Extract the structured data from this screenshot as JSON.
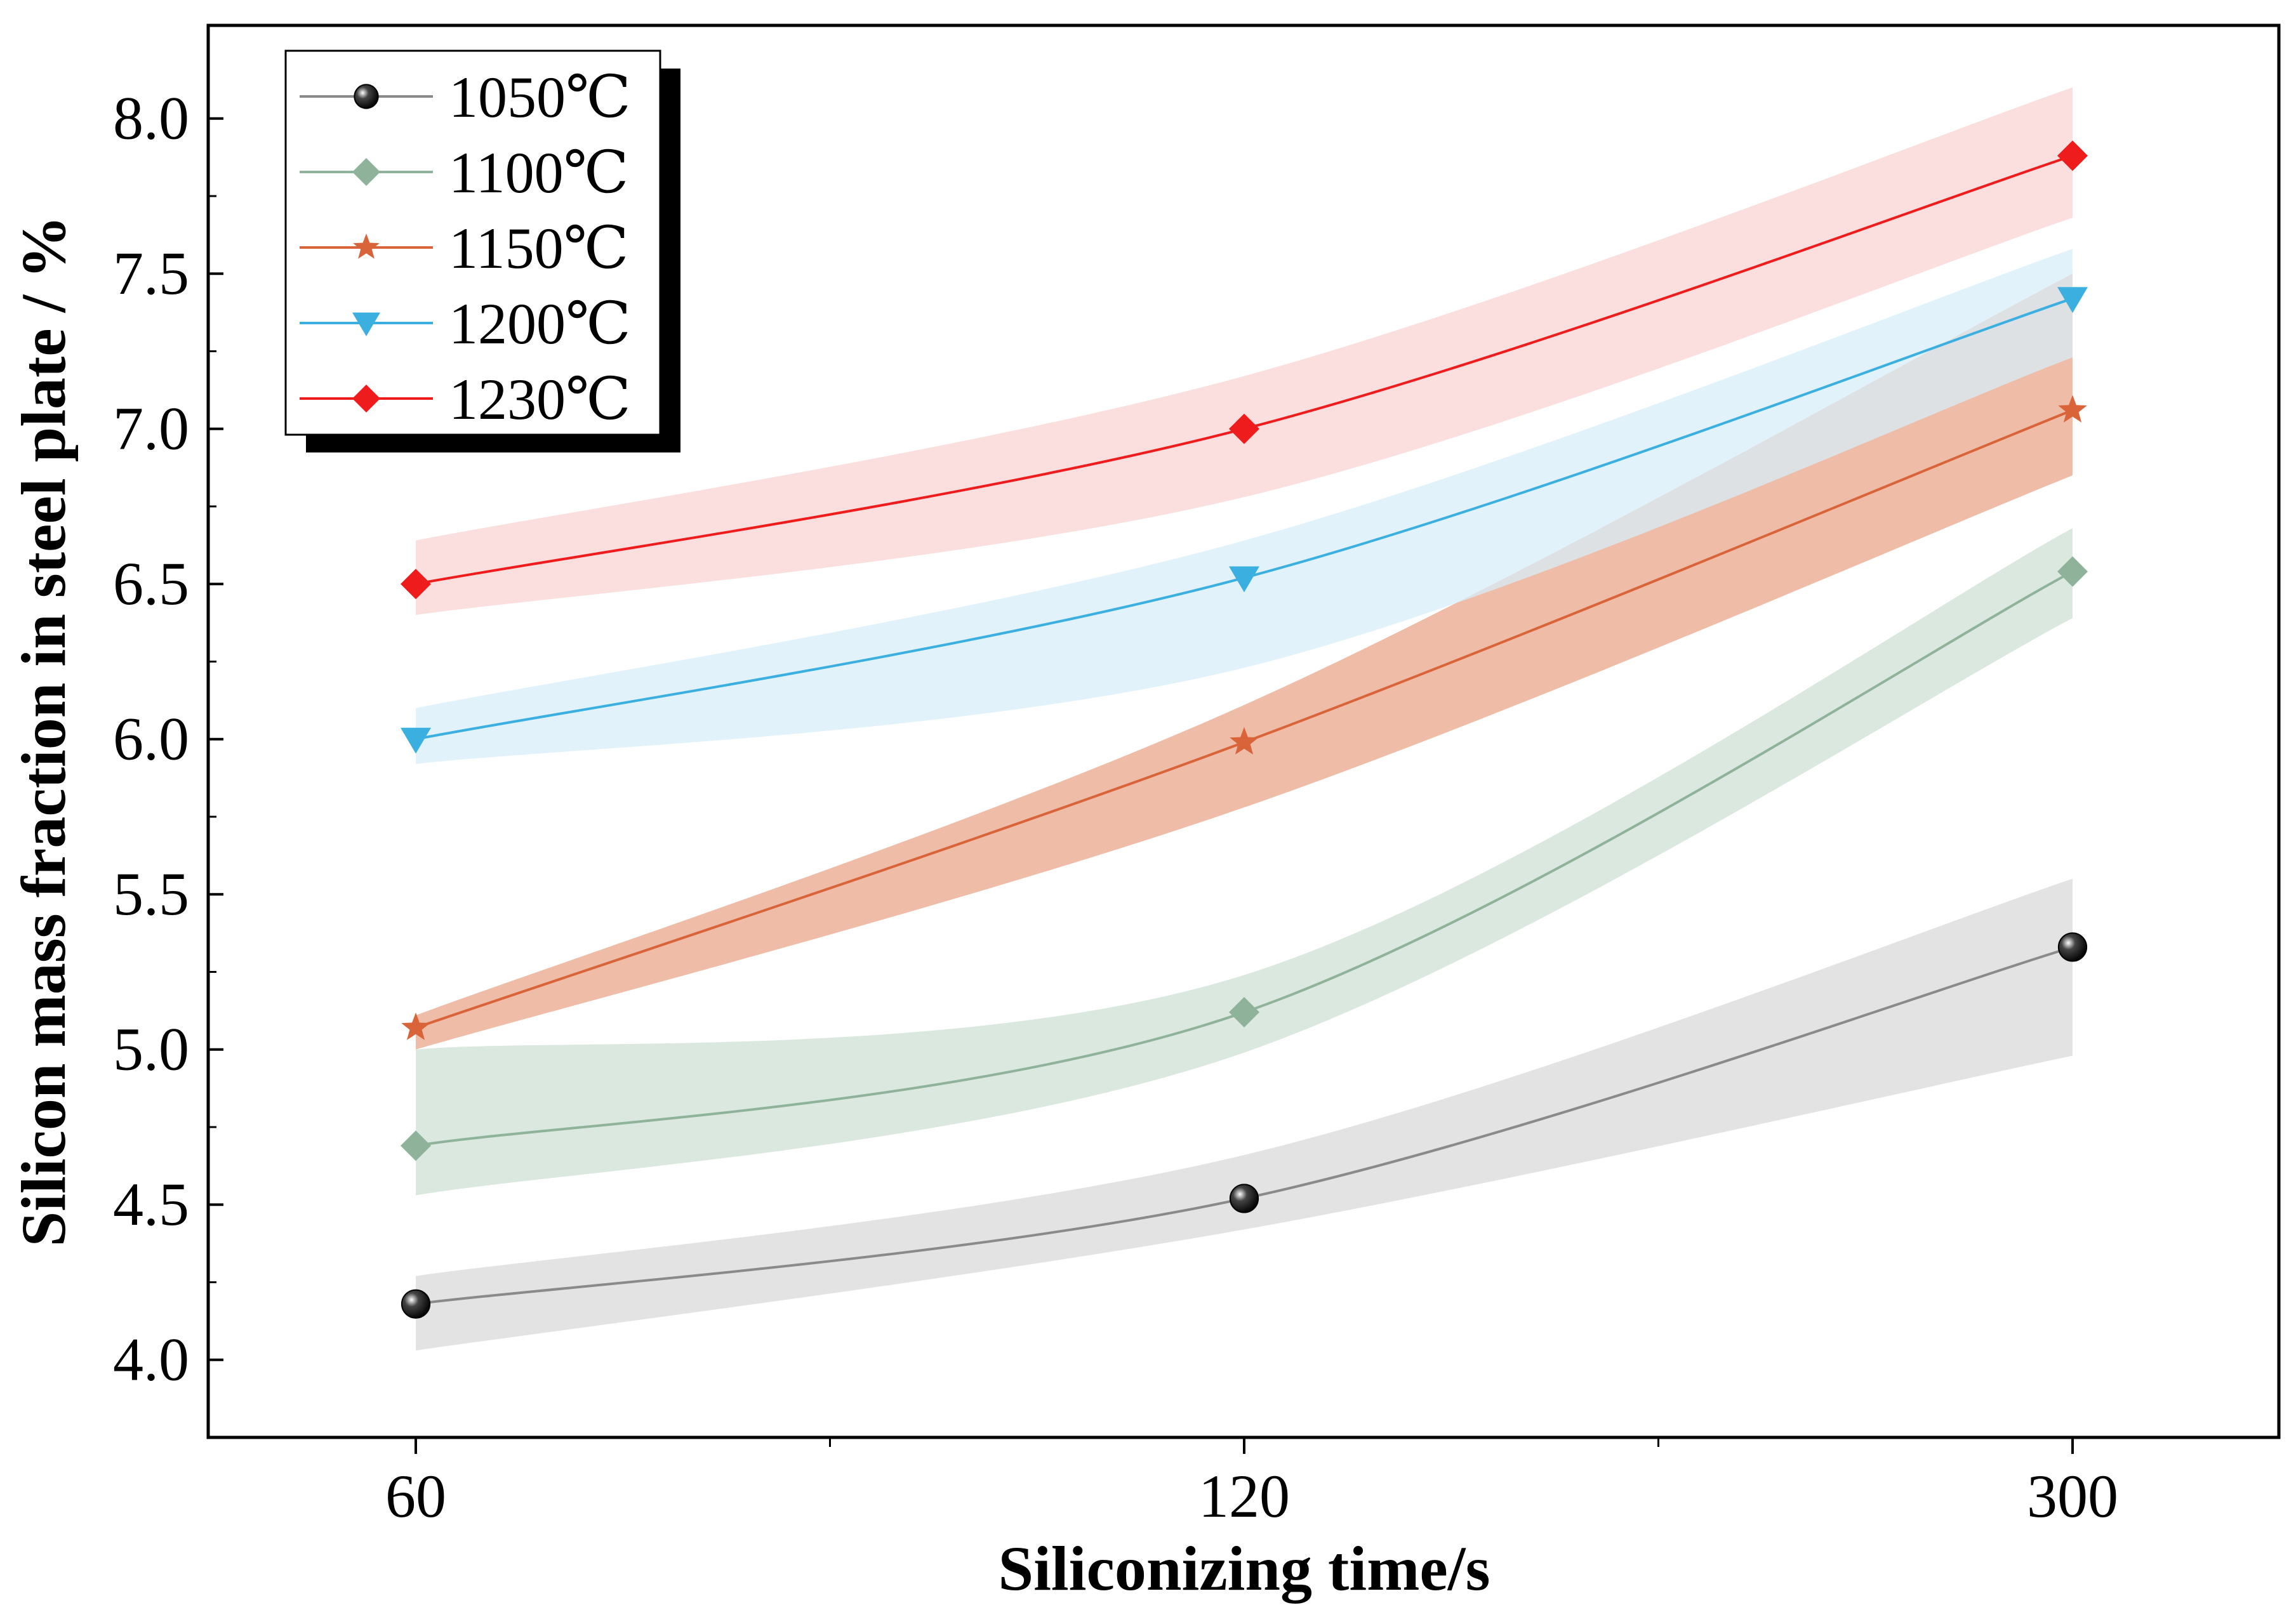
{
  "chart_data": {
    "type": "line",
    "xlabel": "Siliconizing time/s",
    "ylabel": "Silicon mass fraction in steel plate / %",
    "x": [
      "60",
      "120",
      "300"
    ],
    "ylim": [
      3.75,
      8.3
    ],
    "yticks": [
      "4.0",
      "4.5",
      "5.0",
      "5.5",
      "6.0",
      "6.5",
      "7.0",
      "7.5",
      "8.0"
    ],
    "legend_position": "top-left",
    "grid": false,
    "series": [
      {
        "name": "1050℃",
        "marker": "sphere",
        "color": "#8a8a8a",
        "marker_color": "#000000",
        "band_color": "#d9d9d9",
        "values": [
          4.18,
          4.52,
          5.33
        ],
        "lower": [
          4.03,
          4.42,
          4.98
        ],
        "upper": [
          4.27,
          4.66,
          5.55
        ]
      },
      {
        "name": "1100℃",
        "marker": "diamond",
        "color": "#8fb39a",
        "marker_color": "#8fb39a",
        "band_color": "#cfe0d4",
        "values": [
          4.69,
          5.12,
          6.54
        ],
        "lower": [
          4.53,
          4.99,
          6.39
        ],
        "upper": [
          5.0,
          5.24,
          6.68
        ]
      },
      {
        "name": "1150℃",
        "marker": "star",
        "color": "#d9643a",
        "marker_color": "#d9643a",
        "band_color": "#e8a58a",
        "values": [
          5.07,
          5.99,
          7.06
        ],
        "lower": [
          5.0,
          5.78,
          6.85
        ],
        "upper": [
          5.11,
          6.11,
          7.5
        ]
      },
      {
        "name": "1200℃",
        "marker": "triangle-down",
        "color": "#3bb0e0",
        "marker_color": "#3bb0e0",
        "band_color": "#d8eef8",
        "values": [
          6.0,
          6.52,
          7.42
        ],
        "lower": [
          5.92,
          6.23,
          7.23
        ],
        "upper": [
          6.1,
          6.64,
          7.58
        ]
      },
      {
        "name": "1230℃",
        "marker": "diamond",
        "color": "#ee1c1c",
        "marker_color": "#ee1c1c",
        "band_color": "#fad3d3",
        "values": [
          6.5,
          7.0,
          7.88
        ],
        "lower": [
          6.4,
          6.78,
          7.68
        ],
        "upper": [
          6.64,
          7.17,
          8.1
        ]
      }
    ]
  }
}
